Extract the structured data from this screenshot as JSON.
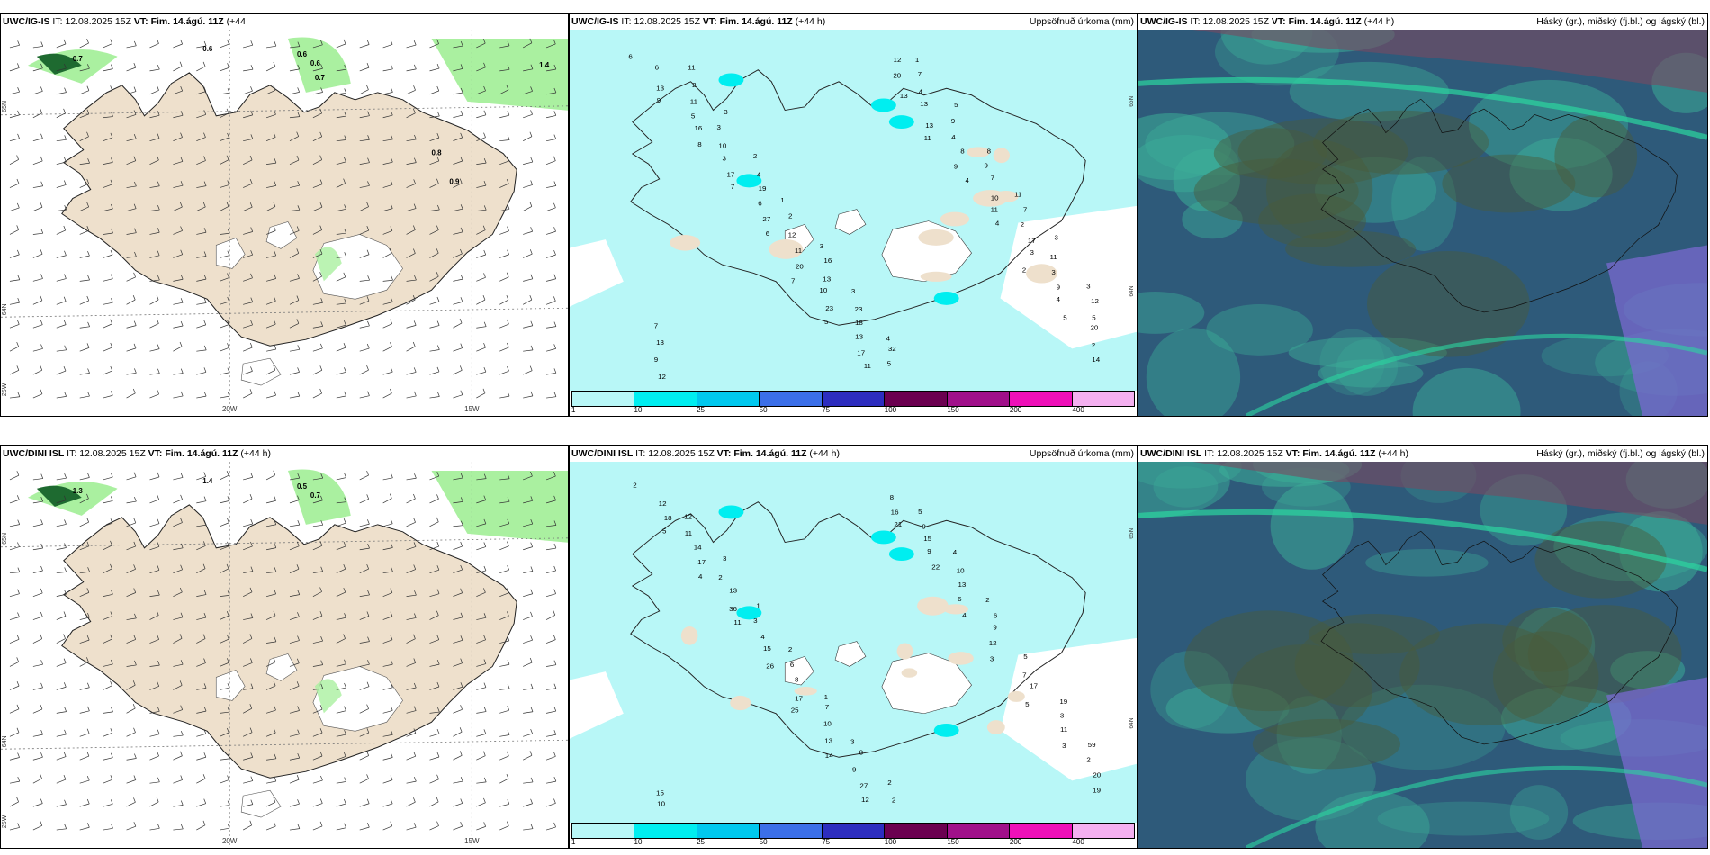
{
  "rows": [
    {
      "id": "top",
      "panels": [
        {
          "id": "wind",
          "title_model": "UWC/IG-IS",
          "title_it_label": "IT:",
          "title_it_value": "12.08.2025 15Z",
          "title_vt_label": "VT:",
          "title_vt_value": "Fim. 14.ágú. 11Z",
          "title_lead": "(+44",
          "title_extra": "h)",
          "right_label": "",
          "values": [
            "0.7",
            "0.6",
            "0.6",
            "0.6",
            "0.7",
            "1.4",
            "0.8",
            "0.9"
          ],
          "lon_labels": [
            "20W",
            "15W"
          ],
          "lat_labels": [
            "65N",
            "64N",
            "25W"
          ]
        },
        {
          "id": "precip",
          "title_model": "UWC/IG-IS",
          "title_it_label": "IT:",
          "title_it_value": "12.08.2025 15Z",
          "title_vt_label": "VT:",
          "title_vt_value": "Fim. 14.ágú. 11Z",
          "title_lead": "(+44 h)",
          "right_label": "Uppsöfnuð úrkoma (mm)",
          "values": [
            "6",
            "9",
            "8",
            "7",
            "6",
            "7",
            "5",
            "11",
            "13",
            "11",
            "4",
            "4",
            "2",
            "5",
            "14",
            "13",
            "16",
            "17",
            "27",
            "20",
            "23",
            "17",
            "20",
            "13",
            "9",
            "11",
            "3",
            "4",
            "2",
            "6",
            "5",
            "3",
            "6",
            "11",
            "10",
            "13",
            "12",
            "13",
            "8",
            "10",
            "17",
            "9",
            "20",
            "12",
            "11",
            "10",
            "19",
            "12",
            "13",
            "18",
            "5",
            "4",
            "4",
            "7",
            "2",
            "3",
            "5",
            "9",
            "2",
            "3",
            "4",
            "2",
            "16",
            "23",
            "32",
            "7",
            "9",
            "9",
            "7",
            "11",
            "12",
            "13",
            "11",
            "3",
            "2",
            "1",
            "3",
            "3",
            "4",
            "1",
            "5",
            "8",
            "11",
            "3",
            "3",
            "7"
          ],
          "lon_labels": [],
          "lat_labels": [
            "65N",
            "64N"
          ]
        },
        {
          "id": "cloud",
          "title_model": "UWC/IG-IS",
          "title_it_label": "IT:",
          "title_it_value": "12.08.2025 15Z",
          "title_vt_label": "VT:",
          "title_vt_value": "Fim. 14.ágú. 11Z",
          "title_lead": "(+44 h)",
          "right_label": "Háský (gr.), miðský (fj.bl.) og lágský (bl.)",
          "values": [],
          "lon_labels": [],
          "lat_labels": []
        }
      ]
    },
    {
      "id": "bottom",
      "panels": [
        {
          "id": "wind",
          "title_model": "UWC/DINI ISL",
          "title_it_label": "IT:",
          "title_it_value": "12.08.2025 15Z",
          "title_vt_label": "VT:",
          "title_vt_value": "Fim. 14.ágú. 11Z",
          "title_lead": "(+44 h)",
          "title_extra": "",
          "right_label": "",
          "values": [
            "1.3",
            "1.4",
            "0.5",
            "0.7"
          ],
          "lon_labels": [
            "20W",
            "15W"
          ],
          "lat_labels": [
            "65N",
            "64N",
            "25W"
          ]
        },
        {
          "id": "precip",
          "title_model": "UWC/DINI ISL",
          "title_it_label": "IT:",
          "title_it_value": "12.08.2025 15Z",
          "title_vt_label": "VT:",
          "title_vt_value": "Fim. 14.ágú. 11Z",
          "title_lead": "(+44 h)",
          "right_label": "Uppsöfnuð úrkoma (mm)",
          "values": [
            "2",
            "5",
            "4",
            "11",
            "26",
            "25",
            "14",
            "12",
            "21",
            "22",
            "4",
            "3",
            "5",
            "3",
            "19",
            "18",
            "17",
            "36",
            "15",
            "17",
            "13",
            "27",
            "16",
            "9",
            "6",
            "12",
            "17",
            "11",
            "20",
            "12",
            "14",
            "13",
            "4",
            "8",
            "10",
            "9",
            "8",
            "15",
            "13",
            "9",
            "7",
            "3",
            "2",
            "10",
            "11",
            "2",
            "3",
            "6",
            "7",
            "8",
            "2",
            "9",
            "10",
            "6",
            "5",
            "19",
            "59",
            "15",
            "12",
            "3",
            "1",
            "2",
            "1",
            "3",
            "2",
            "5",
            "4",
            "2"
          ],
          "lon_labels": [],
          "lat_labels": [
            "65N",
            "64N"
          ]
        },
        {
          "id": "cloud",
          "title_model": "UWC/DINI ISL",
          "title_it_label": "IT:",
          "title_it_value": "12.08.2025 15Z",
          "title_vt_label": "VT:",
          "title_vt_value": "Fim. 14.ágú. 11Z",
          "title_lead": "(+44 h)",
          "right_label": "Háský (gr.), miðský (fj.bl.) og lágský (bl.)",
          "values": [],
          "lon_labels": [],
          "lat_labels": []
        }
      ]
    }
  ],
  "colorbar": {
    "labels": [
      "1",
      "10",
      "25",
      "50",
      "75",
      "100",
      "150",
      "200",
      "400"
    ],
    "colors": [
      "#b8f7f7",
      "#00eef0",
      "#00c8ee",
      "#3b6fe8",
      "#2d2dbf",
      "#6b0050",
      "#a0108a",
      "#ee10b8",
      "#f4b0f0"
    ]
  },
  "colors": {
    "land": "#eee0cc",
    "precip_light": "#b8f7f7",
    "precip_mid": "#00eef0",
    "wind_green": "#aaf0a0",
    "wind_dark": "#1e6a30",
    "cloud_base": "#2e5a7a",
    "cloud_low": "#3cae98",
    "cloud_high": "#7a4a60"
  }
}
